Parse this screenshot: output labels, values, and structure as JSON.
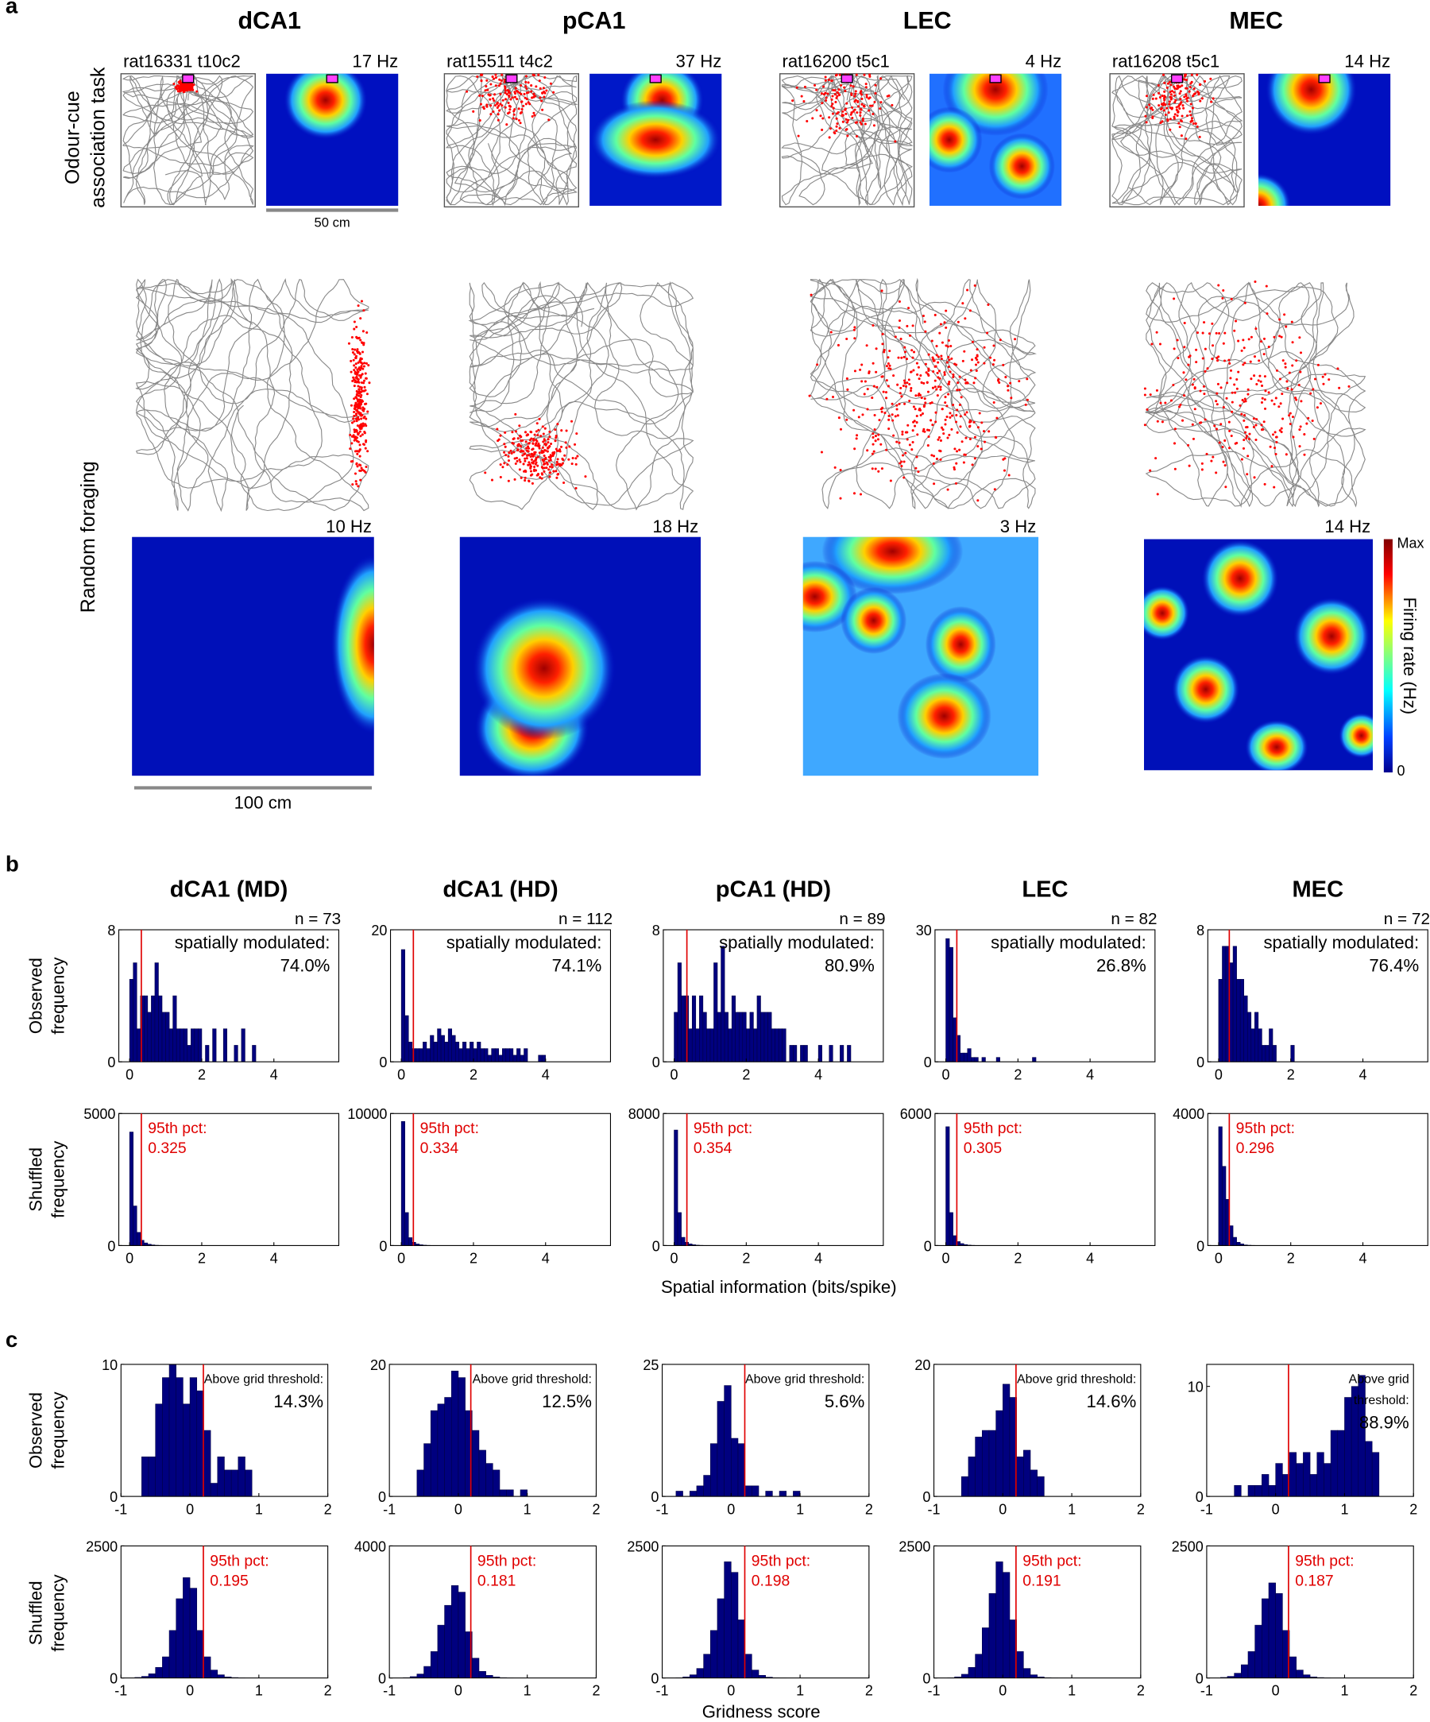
{
  "panel_labels": [
    "a",
    "b",
    "c"
  ],
  "panel_a": {
    "columns": [
      {
        "region": "dCA1",
        "odour_cell": "rat16331 t10c2",
        "odour_peak": "17 Hz",
        "foraging_peak": "10 Hz"
      },
      {
        "region": "pCA1",
        "odour_cell": "rat15511 t4c2",
        "odour_peak": "37 Hz",
        "foraging_peak": "18 Hz"
      },
      {
        "region": "LEC",
        "odour_cell": "rat16200 t5c1",
        "odour_peak": "4 Hz",
        "foraging_peak": "3 Hz"
      },
      {
        "region": "MEC",
        "odour_cell": "rat16208 t5c1",
        "odour_peak": "14 Hz",
        "foraging_peak": "14 Hz"
      }
    ],
    "row_labels": [
      [
        "Odour-cue",
        "association task"
      ],
      [
        "Random foraging"
      ]
    ],
    "scale_bars": [
      "50 cm",
      "100 cm"
    ],
    "colorbar": {
      "label": "Firing rate (Hz)",
      "top": "Max",
      "bottom": "0"
    }
  },
  "panel_b": {
    "ylabels": [
      [
        "Observed",
        "frequency"
      ],
      [
        "Shuffled",
        "frequency"
      ]
    ],
    "xlabel": "Spatial information (bits/spike)"
  },
  "panel_c": {
    "ylabels": [
      [
        "Observed",
        "frequency"
      ],
      [
        "Shuffled",
        "frequency"
      ]
    ],
    "xlabel": "Gridness score"
  },
  "chart_data": [
    {
      "type": "histogram",
      "title": "dCA1 (MD)",
      "n": "n = 73",
      "annotation": [
        "spatially modulated:",
        "74.0%"
      ],
      "color": "#00007f",
      "bins": [
        0,
        0.1,
        0.2,
        0.3,
        0.4,
        0.5,
        0.6,
        0.7,
        0.8,
        0.9,
        1.0,
        1.1,
        1.2,
        1.3,
        1.4,
        1.5,
        1.6,
        1.7,
        1.8,
        1.9,
        2.0,
        2.1,
        2.2,
        2.3,
        2.4,
        2.5,
        2.6,
        2.7,
        2.8,
        2.9,
        3.0,
        3.1,
        3.2,
        3.3,
        3.4,
        3.5
      ],
      "values": [
        5,
        6,
        2,
        4,
        4,
        3,
        4,
        6,
        4,
        3,
        3,
        2,
        4,
        2,
        2,
        2,
        1,
        2,
        2,
        2,
        0,
        1,
        0,
        2,
        0,
        0,
        2,
        0,
        0,
        1,
        0,
        2,
        0,
        0,
        1
      ],
      "xlim": [
        -0.3,
        5.8
      ],
      "ylim": [
        0,
        8
      ],
      "xticks": [
        0,
        2,
        4
      ],
      "yticks": [
        0,
        8
      ]
    },
    {
      "type": "histogram",
      "title": "dCA1 (HD)",
      "n": "n = 112",
      "annotation": [
        "spatially modulated:",
        "74.1%"
      ],
      "color": "#00007f",
      "bins": [
        0,
        0.1,
        0.2,
        0.3,
        0.4,
        0.5,
        0.6,
        0.7,
        0.8,
        0.9,
        1.0,
        1.1,
        1.2,
        1.3,
        1.4,
        1.5,
        1.6,
        1.7,
        1.8,
        1.9,
        2.0,
        2.1,
        2.2,
        2.3,
        2.4,
        2.5,
        2.6,
        2.7,
        2.8,
        2.9,
        3.0,
        3.1,
        3.2,
        3.3,
        3.4,
        3.5,
        3.6,
        3.7,
        3.8,
        3.9,
        4.0
      ],
      "values": [
        17,
        7,
        3,
        2,
        2,
        2,
        3,
        2,
        4,
        3,
        5,
        4,
        3,
        5,
        4,
        3,
        2,
        3,
        2,
        3,
        2,
        3,
        2,
        2,
        1,
        2,
        2,
        1,
        2,
        2,
        2,
        1,
        2,
        1,
        2,
        0,
        0,
        0,
        1,
        1
      ],
      "xlim": [
        -0.3,
        5.8
      ],
      "ylim": [
        0,
        20
      ],
      "xticks": [
        0,
        2,
        4
      ],
      "yticks": [
        0,
        20
      ]
    },
    {
      "type": "histogram",
      "title": "pCA1 (HD)",
      "n": "n = 89",
      "annotation": [
        "spatially modulated:",
        "80.9%"
      ],
      "color": "#00007f",
      "bins": [
        0,
        0.1,
        0.2,
        0.3,
        0.4,
        0.5,
        0.6,
        0.7,
        0.8,
        0.9,
        1.0,
        1.1,
        1.2,
        1.3,
        1.4,
        1.5,
        1.6,
        1.7,
        1.8,
        1.9,
        2.0,
        2.1,
        2.2,
        2.3,
        2.4,
        2.5,
        2.6,
        2.7,
        2.8,
        2.9,
        3.0,
        3.1,
        3.2,
        3.3,
        3.4,
        3.5,
        3.6,
        3.7,
        3.8,
        3.9,
        4.0,
        4.1,
        4.2,
        4.3,
        4.4,
        4.5,
        4.6,
        4.7,
        4.8,
        4.9,
        5.0
      ],
      "values": [
        3,
        6,
        4,
        4,
        2,
        4,
        2,
        4,
        3,
        2,
        2,
        6,
        3,
        7,
        3,
        2,
        4,
        3,
        3,
        3,
        2,
        3,
        2,
        4,
        3,
        3,
        3,
        2,
        2,
        2,
        2,
        0,
        1,
        1,
        0,
        1,
        1,
        0,
        0,
        0,
        1,
        0,
        0,
        1,
        0,
        0,
        1,
        0,
        1,
        0
      ],
      "xlim": [
        -0.3,
        5.8
      ],
      "ylim": [
        0,
        8
      ],
      "xticks": [
        0,
        2,
        4
      ],
      "yticks": [
        0,
        8
      ]
    },
    {
      "type": "histogram",
      "title": "LEC",
      "n": "n = 82",
      "annotation": [
        "spatially modulated:",
        "26.8%"
      ],
      "color": "#00007f",
      "bins": [
        0,
        0.1,
        0.2,
        0.3,
        0.4,
        0.5,
        0.6,
        0.7,
        0.8,
        0.9,
        1.0,
        1.1,
        1.2,
        1.3,
        1.4,
        1.5,
        1.6,
        1.7,
        1.8,
        1.9,
        2.0,
        2.1,
        2.2,
        2.3,
        2.4,
        2.5
      ],
      "values": [
        28,
        26,
        10,
        6,
        2,
        2,
        3,
        1,
        1,
        0,
        1,
        0,
        0,
        0,
        1,
        0,
        0,
        0,
        0,
        0,
        0,
        0,
        0,
        0,
        1
      ],
      "xlim": [
        -0.3,
        5.8
      ],
      "ylim": [
        0,
        30
      ],
      "xticks": [
        0,
        2,
        4
      ],
      "yticks": [
        0,
        30
      ]
    },
    {
      "type": "histogram",
      "title": "MEC",
      "n": "n = 72",
      "annotation": [
        "spatially modulated:",
        "76.4%"
      ],
      "color": "#00007f",
      "bins": [
        0,
        0.1,
        0.2,
        0.3,
        0.4,
        0.5,
        0.6,
        0.7,
        0.8,
        0.9,
        1.0,
        1.1,
        1.2,
        1.3,
        1.4,
        1.5,
        1.6,
        1.7,
        1.8,
        1.9,
        2.0,
        2.1
      ],
      "values": [
        5,
        7,
        7,
        6,
        7,
        5,
        5,
        4,
        3,
        2,
        3,
        2,
        1,
        1,
        2,
        1,
        0,
        0,
        0,
        0,
        1
      ],
      "xlim": [
        -0.3,
        5.8
      ],
      "ylim": [
        0,
        8
      ],
      "xticks": [
        0,
        2,
        4
      ],
      "yticks": [
        0,
        8
      ]
    },
    {
      "type": "histogram",
      "label": "95th pct:",
      "threshold": 0.325,
      "color": "#00007f",
      "bins": [
        0,
        0.1,
        0.2,
        0.3,
        0.4,
        0.5,
        0.6,
        0.7,
        0.8,
        0.9,
        1.0
      ],
      "values": [
        4300,
        1500,
        500,
        200,
        100,
        50,
        25,
        12,
        6,
        3
      ],
      "xlim": [
        -0.3,
        5.8
      ],
      "ylim": [
        0,
        5000
      ],
      "xticks": [
        0,
        2,
        4
      ],
      "yticks": [
        0,
        5000
      ]
    },
    {
      "type": "histogram",
      "label": "95th pct:",
      "threshold": 0.334,
      "color": "#00007f",
      "bins": [
        0,
        0.1,
        0.2,
        0.3,
        0.4,
        0.5,
        0.6,
        0.7,
        0.8,
        0.9,
        1.0
      ],
      "values": [
        9400,
        2500,
        600,
        250,
        120,
        60,
        30,
        15,
        7,
        3
      ],
      "xlim": [
        -0.3,
        5.8
      ],
      "ylim": [
        0,
        10000
      ],
      "xticks": [
        0,
        2,
        4
      ],
      "yticks": [
        0,
        10000
      ]
    },
    {
      "type": "histogram",
      "label": "95th pct:",
      "threshold": 0.354,
      "color": "#00007f",
      "bins": [
        0,
        0.1,
        0.2,
        0.3,
        0.4,
        0.5,
        0.6,
        0.7,
        0.8,
        0.9,
        1.0
      ],
      "values": [
        7000,
        2000,
        500,
        200,
        100,
        50,
        25,
        12,
        6,
        3
      ],
      "xlim": [
        -0.3,
        5.8
      ],
      "ylim": [
        0,
        8000
      ],
      "xticks": [
        0,
        2,
        4
      ],
      "yticks": [
        0,
        8000
      ]
    },
    {
      "type": "histogram",
      "label": "95th pct:",
      "threshold": 0.305,
      "color": "#00007f",
      "bins": [
        0,
        0.1,
        0.2,
        0.3,
        0.4,
        0.5,
        0.6,
        0.7,
        0.8,
        0.9,
        1.0
      ],
      "values": [
        5400,
        1500,
        450,
        180,
        90,
        45,
        22,
        10,
        5,
        2
      ],
      "xlim": [
        -0.3,
        5.8
      ],
      "ylim": [
        0,
        6000
      ],
      "xticks": [
        0,
        2,
        4
      ],
      "yticks": [
        0,
        6000
      ]
    },
    {
      "type": "histogram",
      "label": "95th pct:",
      "threshold": 0.296,
      "color": "#00007f",
      "bins": [
        0,
        0.1,
        0.2,
        0.3,
        0.4,
        0.5,
        0.6,
        0.7,
        0.8,
        0.9,
        1.0
      ],
      "values": [
        3600,
        2400,
        1400,
        600,
        250,
        100,
        50,
        20,
        10,
        5
      ],
      "xlim": [
        -0.3,
        5.8
      ],
      "ylim": [
        0,
        4000
      ],
      "xticks": [
        0,
        2,
        4
      ],
      "yticks": [
        0,
        4000
      ]
    },
    {
      "type": "histogram",
      "annotation": [
        "Above grid threshold:"
      ],
      "percent": "14.3%",
      "color": "#00007f",
      "bins": [
        -0.7,
        -0.6,
        -0.5,
        -0.4,
        -0.3,
        -0.2,
        -0.1,
        0,
        0.1,
        0.2,
        0.3,
        0.4,
        0.5,
        0.6,
        0.7,
        0.8,
        0.9
      ],
      "values": [
        3,
        3,
        7,
        9,
        10,
        9,
        7,
        9,
        8,
        5,
        1,
        3,
        2,
        2,
        3,
        2
      ],
      "xlim": [
        -1,
        2
      ],
      "ylim": [
        0,
        10
      ],
      "xticks": [
        -1,
        0,
        1,
        2
      ],
      "yticks": [
        0,
        10
      ]
    },
    {
      "type": "histogram",
      "annotation": [
        "Above grid threshold:"
      ],
      "percent": "12.5%",
      "color": "#00007f",
      "bins": [
        -0.6,
        -0.5,
        -0.4,
        -0.3,
        -0.2,
        -0.1,
        0,
        0.1,
        0.2,
        0.3,
        0.4,
        0.5,
        0.6,
        0.7,
        0.8,
        0.9,
        1.0
      ],
      "values": [
        4,
        8,
        13,
        14,
        15,
        19,
        18,
        13,
        10,
        7,
        5,
        4,
        1,
        1,
        0,
        1
      ],
      "xlim": [
        -1,
        2
      ],
      "ylim": [
        0,
        20
      ],
      "xticks": [
        -1,
        0,
        1,
        2
      ],
      "yticks": [
        0,
        20
      ]
    },
    {
      "type": "histogram",
      "annotation": [
        "Above grid threshold:"
      ],
      "percent": "5.6%",
      "color": "#00007f",
      "bins": [
        -0.8,
        -0.7,
        -0.6,
        -0.5,
        -0.4,
        -0.3,
        -0.2,
        -0.1,
        0,
        0.1,
        0.2,
        0.3,
        0.4,
        0.5,
        0.6,
        0.7,
        0.8,
        0.9,
        1.0
      ],
      "values": [
        1,
        0,
        1,
        2,
        4,
        10,
        18,
        21,
        11,
        10,
        2,
        2,
        0,
        1,
        0,
        1,
        0,
        1
      ],
      "xlim": [
        -1,
        2
      ],
      "ylim": [
        0,
        25
      ],
      "xticks": [
        -1,
        0,
        1,
        2
      ],
      "yticks": [
        0,
        25
      ]
    },
    {
      "type": "histogram",
      "annotation": [
        "Above grid threshold:"
      ],
      "percent": "14.6%",
      "color": "#00007f",
      "bins": [
        -0.6,
        -0.5,
        -0.4,
        -0.3,
        -0.2,
        -0.1,
        0,
        0.1,
        0.2,
        0.3,
        0.4,
        0.5,
        0.6
      ],
      "values": [
        3,
        6,
        9,
        10,
        10,
        13,
        17,
        15,
        6,
        7,
        4,
        3
      ],
      "xlim": [
        -1,
        2
      ],
      "ylim": [
        0,
        20
      ],
      "xticks": [
        -1,
        0,
        1,
        2
      ],
      "yticks": [
        0,
        20
      ]
    },
    {
      "type": "histogram",
      "annotation": [
        "Above grid",
        "threshold:"
      ],
      "percent": "88.9%",
      "color": "#00007f",
      "bins": [
        -0.6,
        -0.5,
        -0.4,
        -0.3,
        -0.2,
        -0.1,
        0,
        0.1,
        0.2,
        0.3,
        0.4,
        0.5,
        0.6,
        0.7,
        0.8,
        0.9,
        1.0,
        1.1,
        1.2,
        1.3,
        1.4,
        1.5
      ],
      "values": [
        1,
        0,
        1,
        1,
        2,
        1,
        3,
        2,
        4,
        3,
        4,
        2,
        4,
        3,
        6,
        6,
        9,
        10,
        11,
        5,
        4
      ],
      "xlim": [
        -1,
        2
      ],
      "ylim": [
        0,
        12
      ],
      "xticks": [
        -1,
        0,
        1,
        2
      ],
      "yticks": [
        0,
        10
      ]
    },
    {
      "type": "histogram",
      "label": "95th pct:",
      "threshold": 0.195,
      "color": "#00007f",
      "bins": [
        -0.8,
        -0.7,
        -0.6,
        -0.5,
        -0.4,
        -0.3,
        -0.2,
        -0.1,
        0,
        0.1,
        0.2,
        0.3,
        0.4,
        0.5,
        0.6,
        0.7,
        0.8
      ],
      "values": [
        10,
        30,
        80,
        200,
        400,
        900,
        1500,
        1900,
        1700,
        900,
        400,
        150,
        60,
        20,
        8,
        3
      ],
      "xlim": [
        -1,
        2
      ],
      "ylim": [
        0,
        2500
      ],
      "xticks": [
        -1,
        0,
        1,
        2
      ],
      "yticks": [
        0,
        2500
      ]
    },
    {
      "type": "histogram",
      "label": "95th pct:",
      "threshold": 0.181,
      "color": "#00007f",
      "bins": [
        -0.8,
        -0.7,
        -0.6,
        -0.5,
        -0.4,
        -0.3,
        -0.2,
        -0.1,
        0,
        0.1,
        0.2,
        0.3,
        0.4,
        0.5,
        0.6,
        0.7,
        0.8
      ],
      "values": [
        10,
        40,
        120,
        350,
        800,
        1600,
        2200,
        2800,
        2600,
        1400,
        600,
        200,
        80,
        30,
        10,
        4
      ],
      "xlim": [
        -1,
        2
      ],
      "ylim": [
        0,
        4000
      ],
      "xticks": [
        -1,
        0,
        1,
        2
      ],
      "yticks": [
        0,
        4000
      ]
    },
    {
      "type": "histogram",
      "label": "95th pct:",
      "threshold": 0.198,
      "color": "#00007f",
      "bins": [
        -0.8,
        -0.7,
        -0.6,
        -0.5,
        -0.4,
        -0.3,
        -0.2,
        -0.1,
        0,
        0.1,
        0.2,
        0.3,
        0.4,
        0.5,
        0.6,
        0.7,
        0.8
      ],
      "values": [
        5,
        20,
        60,
        180,
        450,
        900,
        1500,
        2200,
        2000,
        1100,
        450,
        150,
        50,
        15,
        5,
        2
      ],
      "xlim": [
        -1,
        2
      ],
      "ylim": [
        0,
        2500
      ],
      "xticks": [
        -1,
        0,
        1,
        2
      ],
      "yticks": [
        0,
        2500
      ]
    },
    {
      "type": "histogram",
      "label": "95th pct:",
      "threshold": 0.191,
      "color": "#00007f",
      "bins": [
        -0.8,
        -0.7,
        -0.6,
        -0.5,
        -0.4,
        -0.3,
        -0.2,
        -0.1,
        0,
        0.1,
        0.2,
        0.3,
        0.4,
        0.5,
        0.6,
        0.7,
        0.8
      ],
      "values": [
        5,
        20,
        70,
        200,
        450,
        950,
        1600,
        2200,
        2000,
        1100,
        500,
        180,
        60,
        20,
        6,
        2
      ],
      "xlim": [
        -1,
        2
      ],
      "ylim": [
        0,
        2500
      ],
      "xticks": [
        -1,
        0,
        1,
        2
      ],
      "yticks": [
        0,
        2500
      ]
    },
    {
      "type": "histogram",
      "label": "95th pct:",
      "threshold": 0.187,
      "color": "#00007f",
      "bins": [
        -0.8,
        -0.7,
        -0.6,
        -0.5,
        -0.4,
        -0.3,
        -0.2,
        -0.1,
        0,
        0.1,
        0.2,
        0.3,
        0.4,
        0.5,
        0.6,
        0.7,
        0.8
      ],
      "values": [
        10,
        30,
        90,
        250,
        500,
        1000,
        1500,
        1800,
        1600,
        900,
        400,
        150,
        60,
        20,
        8,
        3
      ],
      "xlim": [
        -1,
        2
      ],
      "ylim": [
        0,
        2500
      ],
      "xticks": [
        -1,
        0,
        1,
        2
      ],
      "yticks": [
        0,
        2500
      ]
    }
  ]
}
